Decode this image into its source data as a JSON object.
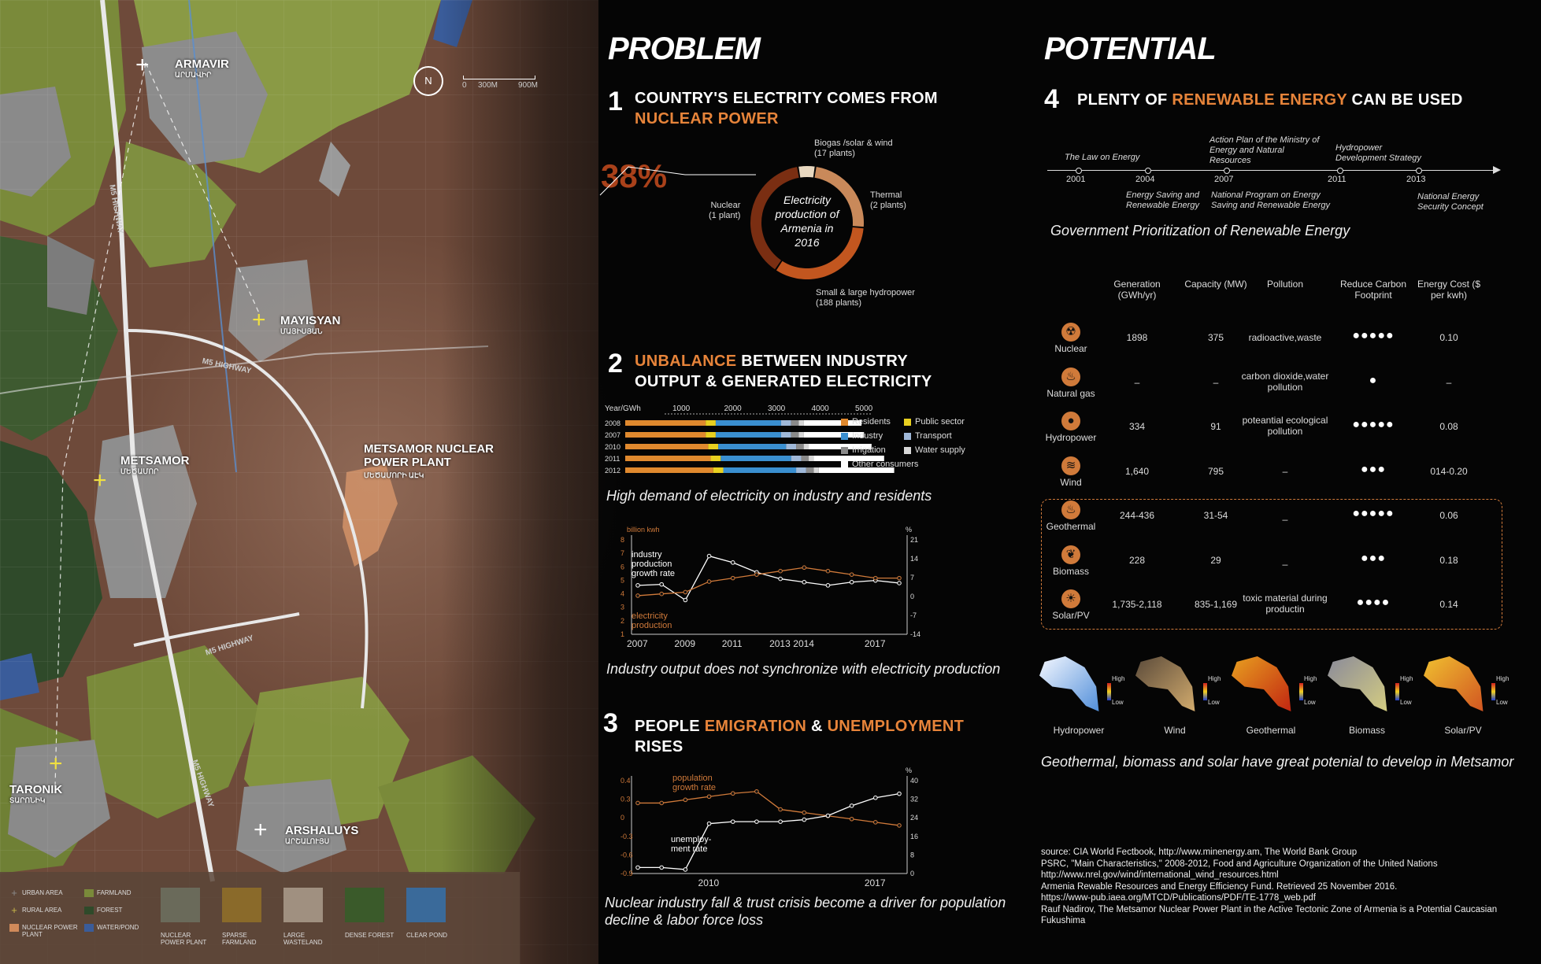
{
  "map": {
    "places": [
      {
        "name": "ARMAVIR",
        "sub": "ԱՐՄԱՎԻՐ"
      },
      {
        "name": "MAYISYAN",
        "sub": "ՄԱՅԻՍՅԱՆ"
      },
      {
        "name": "METSAMOR",
        "sub": "ՄԵԾԱՄՈՐ"
      },
      {
        "name": "METSAMOR NUCLEAR POWER PLANT",
        "sub": "ՄԵԾԱՄՈՐԻ ԱԷԿ"
      },
      {
        "name": "TARONIK",
        "sub": "ՏԱՐՈՆԻԿ"
      },
      {
        "name": "ARSHALUYS",
        "sub": "ԱՐՇԱԼՈՒՅՍ"
      }
    ],
    "roads": [
      "M5 HIGHWAY",
      "M5 HIGHWAY",
      "M5 HIGHWAY",
      "M5 HIGHWAY"
    ],
    "scale": {
      "labels": [
        "0",
        "300M",
        "900M"
      ],
      "north": "N"
    },
    "legend": [
      {
        "label": "URBAN AREA",
        "color": "#8a8a8a",
        "icon": "plus-icon"
      },
      {
        "label": "FARMLAND",
        "color": "#7a8a3a"
      },
      {
        "label": "RURAL AREA",
        "color": "#c8b74a",
        "icon": "plus-icon"
      },
      {
        "label": "FOREST",
        "color": "#2f4a2a"
      },
      {
        "label": "NUCLEAR POWER PLANT",
        "color": "#d08a5a"
      },
      {
        "label": "WATER/POND",
        "color": "#3a5c9a"
      }
    ],
    "photos": [
      "NUCLEAR POWER PLANT",
      "SPARSE FARMLAND",
      "LARGE WASTELAND",
      "DENSE FOREST",
      "CLEAR POND"
    ]
  },
  "problem": {
    "heading": "PROBLEM",
    "p1": {
      "num": "1",
      "line1": "COUNTRY'S ELECTRITY COMES FROM",
      "line2": "NUCLEAR POWER",
      "percent": "38%",
      "center": [
        "Electricity",
        "production of",
        "Armenia in",
        "2016"
      ],
      "labels": [
        {
          "t": "Biogas /solar & wind",
          "s": "(17 plants)"
        },
        {
          "t": "Thermal",
          "s": "(2 plants)"
        },
        {
          "t": "Small & large hydropower",
          "s": "(188 plants)"
        },
        {
          "t": "Nuclear",
          "s": "(1 plant)"
        }
      ]
    },
    "p2": {
      "num": "2",
      "hl": "UNBALANCE",
      "rest1": " BETWEEN  INDUSTRY",
      "line2": "OUTPUT & GENERATED ELECTRICITY",
      "caption1": "High demand of electricity on industry and residents",
      "caption2": "Industry output does not synchronize with electricity production"
    },
    "p3": {
      "num": "3",
      "pre": "PEOPLE ",
      "hl1": "EMIGRATION",
      "mid": "  & ",
      "hl2": "UNEMPLOYMENT",
      "line2": "RISES",
      "caption": "Nuclear industry fall & trust crisis become a driver for population decline & labor force loss"
    }
  },
  "potential": {
    "heading": "POTENTIAL",
    "p4": {
      "num": "4",
      "pre": "PLENTY OF ",
      "hl": "RENEWABLE ENERGY",
      "post": " CAN BE USED"
    },
    "timeline": {
      "years": [
        "2001",
        "2004",
        "2007",
        "2011",
        "2013"
      ],
      "above": [
        {
          "text": "The Law on Energy"
        },
        {
          "text": "Action Plan of the Ministry of Energy and Natural Resources"
        },
        {
          "text": "Hydropower Development Strategy"
        }
      ],
      "below": [
        {
          "text": "Energy Saving and Renewable Energy"
        },
        {
          "text": "National Program on Energy Saving and Renewable Energy"
        },
        {
          "text": "National Energy Security Concept"
        }
      ],
      "caption": "Government Prioritization of Renewable Energy"
    },
    "table": {
      "headers": [
        "Generation (GWh/yr)",
        "Capacity (MW)",
        "Pollution",
        "Reduce Carbon Footprint",
        "Energy Cost ($ per kwh)"
      ],
      "rows": [
        {
          "name": "Nuclear",
          "icon": "radiation-icon",
          "gen": "1898",
          "cap": "375",
          "pol": "radioactive,waste",
          "dots": "●●●●●",
          "cost": "0.10"
        },
        {
          "name": "Natural gas",
          "icon": "flame-icon",
          "gen": "–",
          "cap": "–",
          "pol": "carbon dioxide,water pollution",
          "dots": "●",
          "cost": "–"
        },
        {
          "name": "Hydropower",
          "icon": "droplet-icon",
          "gen": "334",
          "cap": "91",
          "pol": "poteantial ecological pollution",
          "dots": "●●●●●",
          "cost": "0.08"
        },
        {
          "name": "Wind",
          "icon": "wind-icon",
          "gen": "1,640",
          "cap": "795",
          "pol": "–",
          "dots": "●●●",
          "cost": "014-0.20"
        },
        {
          "name": "Geothermal",
          "icon": "geothermal-icon",
          "gen": "244-436",
          "cap": "31-54",
          "pol": "_",
          "dots": "●●●●●",
          "cost": "0.06"
        },
        {
          "name": "Biomass",
          "icon": "leaf-icon",
          "gen": "228",
          "cap": "29",
          "pol": "_",
          "dots": "●●●",
          "cost": "0.18"
        },
        {
          "name": "Solar/PV",
          "icon": "sun-icon",
          "gen": "1,735-2,118",
          "cap": "835-1,169",
          "pol": "toxic material during productin",
          "dots": "●●●●",
          "cost": "0.14"
        }
      ]
    },
    "maps": {
      "items": [
        "Hydropower",
        "Wind",
        "Geothermal",
        "Biomass",
        "Solar/PV"
      ],
      "high": "High",
      "low": "Low",
      "caption": "Geothermal, biomass and solar have great potenial to develop in Metsamor"
    },
    "sources": [
      "source: CIA World Fectbook, http://www.minenergy.am, The World Bank Group",
      "PSRC, \"Main Characteristics,\" 2008-2012, Food and Agriculture Organization of the United Nations",
      "http://www.nrel.gov/wind/international_wind_resources.html",
      "Armenia Rewable Resources and Energy Efficiency Fund. Retrieved 25 November 2016.",
      "https://www-pub.iaea.org/MTCD/Publications/PDF/TE-1778_web.pdf",
      "Rauf Nadirov, The Metsamor Nuclear Power Plant in the Active Tectonic Zone of Armenia is a Potential Caucasian Fukushima"
    ]
  },
  "chart_data": [
    {
      "type": "pie",
      "title": "",
      "categories": [
        "Nuclear (1 plant)",
        "Biogas /solar & wind (17 plants)",
        "Thermal (2 plants)",
        "Small & large hydropower (188 plants)"
      ],
      "values": [
        38,
        5,
        24,
        33
      ],
      "colors": [
        "#7a2e12",
        "#e8d8c0",
        "#c9895a",
        "#c2561f"
      ]
    },
    {
      "type": "bar",
      "stacked": true,
      "orientation": "horizontal",
      "xlabel": "Year/GWh",
      "xticks": [
        "1000",
        "2000",
        "3000",
        "4000",
        "5000"
      ],
      "xlim": [
        0,
        5200
      ],
      "categories": [
        "2008",
        "2007",
        "2010",
        "2011",
        "2012"
      ],
      "series": [
        {
          "name": "Residents",
          "color": "#e0892e",
          "values": [
            1600,
            1600,
            1650,
            1700,
            1750
          ]
        },
        {
          "name": "Public sector",
          "color": "#e8d020",
          "values": [
            200,
            200,
            200,
            200,
            200
          ]
        },
        {
          "name": "Industry",
          "color": "#3a8fd0",
          "values": [
            1300,
            1300,
            1350,
            1400,
            1450
          ]
        },
        {
          "name": "Transport",
          "color": "#9fb8d8",
          "values": [
            200,
            200,
            200,
            200,
            200
          ]
        },
        {
          "name": "Irrigation",
          "color": "#8a8a8a",
          "values": [
            150,
            150,
            150,
            150,
            150
          ]
        },
        {
          "name": "Water supply",
          "color": "#d8d8d8",
          "values": [
            100,
            100,
            100,
            100,
            100
          ]
        },
        {
          "name": "Other consumers",
          "color": "#ffffff",
          "values": [
            1150,
            1200,
            1250,
            1400,
            1500
          ]
        }
      ]
    },
    {
      "type": "line",
      "ylabel_left": "billion kwh",
      "ylabel_right": "%",
      "x": [
        2007,
        2008,
        2009,
        2010,
        2011,
        2012,
        2013,
        2014,
        2015,
        2016,
        2017,
        2018
      ],
      "xticks": [
        "2007",
        "2009",
        "2011",
        "2013",
        "2014",
        "2017"
      ],
      "yleft_ticks": [
        "8",
        "7",
        "6",
        "5",
        "4",
        "3",
        "2",
        "1"
      ],
      "yright_ticks": [
        "21",
        "14",
        "7",
        "0",
        "-7",
        "-14"
      ],
      "series": [
        {
          "name": "industry production growth rate",
          "color": "#ffffff",
          "values": [
            5,
            5.3,
            0.5,
            14,
            12,
            9,
            7,
            6,
            5,
            6,
            6.5,
            5.7
          ]
        },
        {
          "name": "electricity production",
          "color": "#d07a3a",
          "values": [
            -1,
            -0.5,
            0,
            3,
            4,
            5,
            6,
            7,
            6,
            5,
            4,
            4
          ]
        }
      ]
    },
    {
      "type": "line",
      "ylabel_right": "%",
      "x": [
        2007,
        2008,
        2009,
        2010,
        2011,
        2012,
        2013,
        2014,
        2015,
        2016,
        2017,
        2018
      ],
      "xticks": [
        "2010",
        "2017"
      ],
      "yleft_ticks": [
        "0.4",
        "0.3",
        "0",
        "-0.3",
        "-0.6",
        "-0.9"
      ],
      "yright_ticks": [
        "40",
        "32",
        "24",
        "16",
        "8",
        "0"
      ],
      "series": [
        {
          "name": "population growth rate",
          "color": "#d07a3a",
          "values": [
            0.2,
            0.2,
            0.25,
            0.3,
            0.35,
            0.38,
            0.1,
            0.05,
            0.0,
            -0.05,
            -0.1,
            -0.15
          ]
        },
        {
          "name": "unemploy- ment rate",
          "color": "#ffffff",
          "values": [
            3,
            3,
            2,
            25,
            26,
            26,
            26,
            27,
            29,
            34,
            38,
            40
          ]
        }
      ]
    }
  ]
}
